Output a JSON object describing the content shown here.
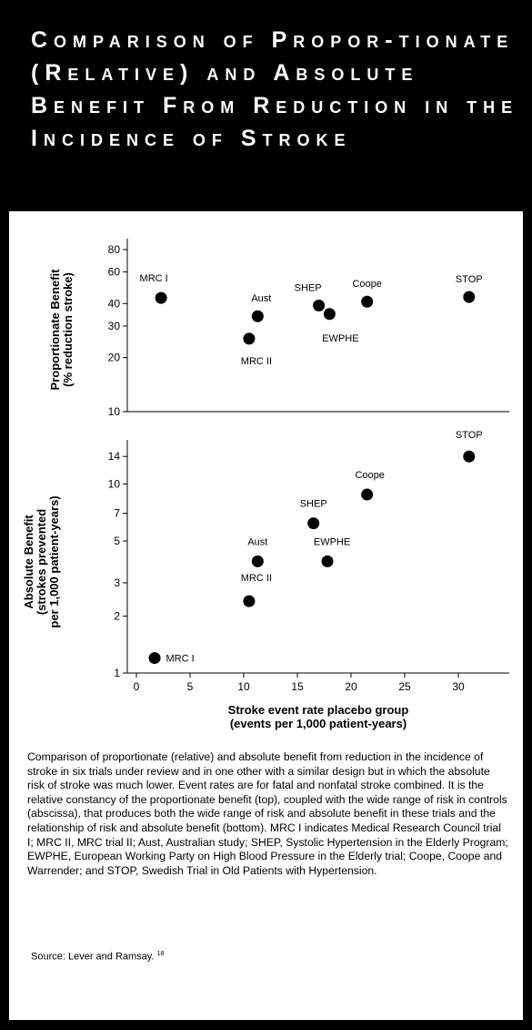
{
  "title": "Comparison of Propor-tionate (Relative) and Absolute Benefit From Reduction in the Incidence of Stroke",
  "chart_data": [
    {
      "type": "scatter",
      "ylabel": [
        "Proportionate Benefit",
        "(% reduction stroke)"
      ],
      "yscale": "log",
      "ylim": [
        10,
        80
      ],
      "yticks": [
        10,
        20,
        30,
        40,
        60,
        80
      ],
      "xlim": [
        0,
        33
      ],
      "points": [
        {
          "label": "MRC I",
          "x": 2.3,
          "y": 43
        },
        {
          "label": "MRC II",
          "x": 10.5,
          "y": 25.5
        },
        {
          "label": "Aust",
          "x": 11.3,
          "y": 34
        },
        {
          "label": "SHEP",
          "x": 17,
          "y": 39
        },
        {
          "label": "EWPHE",
          "x": 18,
          "y": 35
        },
        {
          "label": "Coope",
          "x": 21.5,
          "y": 41
        },
        {
          "label": "STOP",
          "x": 31,
          "y": 43.5
        }
      ]
    },
    {
      "type": "scatter",
      "ylabel": [
        "Absolute Benefit",
        "(strokes prevented",
        "per 1,000 patient-years)"
      ],
      "yscale": "log",
      "ylim": [
        1,
        15
      ],
      "yticks": [
        1,
        2,
        3,
        5,
        7,
        10,
        14
      ],
      "xlim": [
        0,
        33
      ],
      "xticks": [
        0,
        5,
        10,
        15,
        20,
        25,
        30
      ],
      "xlabel": [
        "Stroke event rate placebo group",
        "(events per 1,000 patient-years)"
      ],
      "points": [
        {
          "label": "MRC I",
          "x": 1.7,
          "y": 1.2
        },
        {
          "label": "MRC II",
          "x": 10.5,
          "y": 2.4
        },
        {
          "label": "Aust",
          "x": 11.3,
          "y": 3.9
        },
        {
          "label": "SHEP",
          "x": 16.5,
          "y": 6.2
        },
        {
          "label": "EWPHE",
          "x": 17.8,
          "y": 3.9
        },
        {
          "label": "Coope",
          "x": 21.5,
          "y": 8.8
        },
        {
          "label": "STOP",
          "x": 31,
          "y": 14
        }
      ]
    }
  ],
  "caption": "Comparison of proportionate (relative) and absolute benefit from reduction in the incidence of stroke in six trials under review and in one other with a similar design but in which the absolute risk of stroke was much lower. Event rates are for fatal and nonfatal stroke combined. It is the relative constancy of the proportionate benefit (top), coupled with the wide range of risk in controls (abscissa), that produces both the wide range of risk and absolute benefit in these trials and the relationship of risk and absolute benefit (bottom). MRC I indicates Medical Research Council trial I; MRC II, MRC trial II; Aust, Australian study; SHEP, Systolic Hypertension in the Elderly Program; EWPHE, European Working Party on High Blood Pressure in the Elderly trial; Coope, Coope and Warrender; and STOP, Swedish Trial in Old Patients with Hypertension.",
  "source": "Source: Lever and Ramsay.",
  "source_ref": "18"
}
